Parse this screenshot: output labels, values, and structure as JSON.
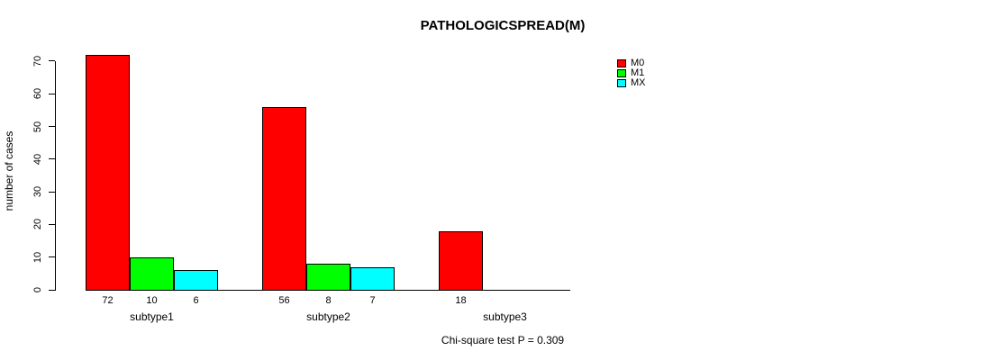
{
  "chart_data": {
    "type": "bar",
    "title": "PATHOLOGICSPREAD(M)",
    "ylabel": "number of cases",
    "xlabel": "",
    "categories": [
      "subtype1",
      "subtype2",
      "subtype3"
    ],
    "series": [
      {
        "name": "M0",
        "color": "#ff0000",
        "values": [
          72,
          56,
          18
        ]
      },
      {
        "name": "M1",
        "color": "#00ff00",
        "values": [
          10,
          8,
          null
        ]
      },
      {
        "name": "MX",
        "color": "#00ffff",
        "values": [
          6,
          7,
          null
        ]
      }
    ],
    "yticks": [
      0,
      10,
      20,
      30,
      40,
      50,
      60,
      70
    ],
    "ylim": [
      0,
      70
    ],
    "grid": false,
    "legend_position": "top-right-outside-bars",
    "annotation": "Chi-square test P = 0.309"
  }
}
